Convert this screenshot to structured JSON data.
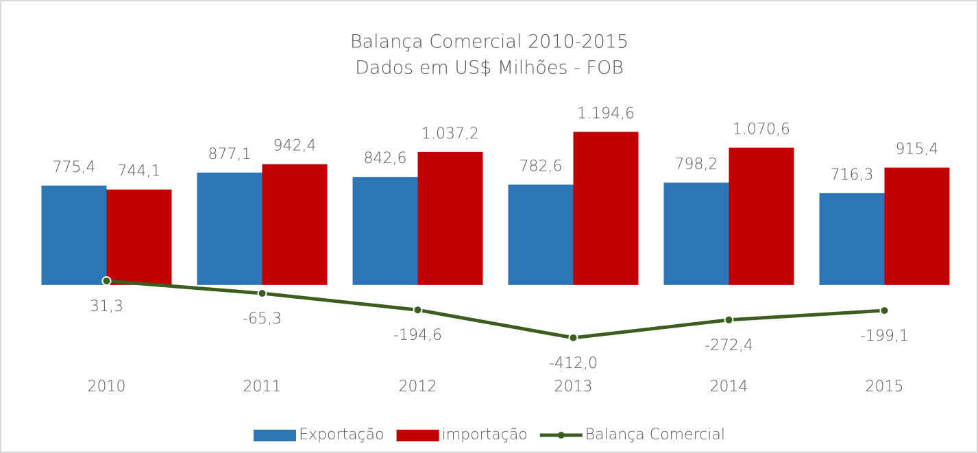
{
  "chart_data": {
    "type": "bar",
    "title": "Balança Comercial 2010-2015",
    "subtitle": "Dados em US$ Milhões - FOB",
    "categories": [
      "2010",
      "2011",
      "2012",
      "2013",
      "2014",
      "2015"
    ],
    "series": [
      {
        "name": "Exportação",
        "color": "#2e75b6",
        "values": [
          775.4,
          877.1,
          842.6,
          782.6,
          798.2,
          716.3
        ],
        "value_labels": [
          "775,4",
          "877,1",
          "842,6",
          "782,6",
          "798,2",
          "716,3"
        ]
      },
      {
        "name": "importação",
        "color": "#c00000",
        "values": [
          744.1,
          942.4,
          1037.2,
          1194.6,
          1070.6,
          915.4
        ],
        "value_labels": [
          "744,1",
          "942,4",
          "1.037,2",
          "1.194,6",
          "1.070,6",
          "915,4"
        ]
      },
      {
        "name": "Balança Comercial",
        "type": "line",
        "color": "#3b5e1f",
        "values": [
          31.3,
          -65.3,
          -194.6,
          -412.0,
          -272.4,
          -199.1
        ],
        "value_labels": [
          "31,3",
          "-65,3",
          "-194,6",
          "-412,0",
          "-272,4",
          "-199,1"
        ]
      }
    ],
    "ylim": [
      -450,
      1250
    ],
    "legend": "bottom"
  }
}
